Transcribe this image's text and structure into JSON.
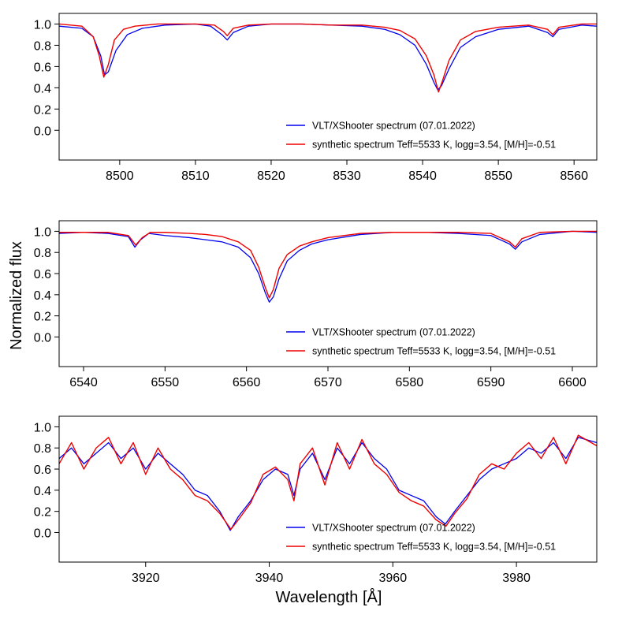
{
  "figure": {
    "ylabel": "Normalized flux",
    "xlabel": "Wavelength [Å]"
  },
  "colors": {
    "observed": "#0000ee",
    "synthetic": "#ee0000"
  },
  "chart_data": [
    {
      "type": "line",
      "title": "",
      "xlim": [
        8492,
        8563
      ],
      "ylim": [
        -0.28,
        1.1
      ],
      "xticks": [
        8500,
        8510,
        8520,
        8530,
        8540,
        8550,
        8560
      ],
      "yticks": [
        0.0,
        0.2,
        0.4,
        0.6,
        0.8,
        1.0
      ],
      "legend_placement": "lower-right",
      "series": [
        {
          "name": "VLT/XShooter spectrum (07.01.2022)",
          "role": "observed",
          "x": [
            8492,
            8495,
            8496.5,
            8497.5,
            8498,
            8498.5,
            8499.5,
            8501,
            8503,
            8506,
            8510,
            8512,
            8513.5,
            8514.2,
            8515,
            8517,
            8520,
            8524,
            8528,
            8532,
            8535,
            8537,
            8539,
            8540.5,
            8541.5,
            8542,
            8542.5,
            8543.5,
            8545,
            8547,
            8550,
            8554,
            8556.5,
            8557.2,
            8558,
            8561,
            8563
          ],
          "y": [
            0.98,
            0.96,
            0.88,
            0.7,
            0.52,
            0.55,
            0.75,
            0.9,
            0.96,
            0.99,
            1.0,
            0.98,
            0.9,
            0.85,
            0.92,
            0.98,
            1.0,
            1.0,
            0.99,
            0.98,
            0.95,
            0.9,
            0.8,
            0.62,
            0.45,
            0.38,
            0.42,
            0.58,
            0.78,
            0.88,
            0.95,
            0.98,
            0.92,
            0.88,
            0.95,
            0.99,
            0.98
          ]
        },
        {
          "name": "synthetic spectrum Teff=5533 K, logg=3.54, [M/H]=-0.51",
          "role": "synthetic",
          "x": [
            8492,
            8495,
            8496.5,
            8497.3,
            8497.9,
            8498.5,
            8499.3,
            8500.5,
            8502,
            8505,
            8510,
            8512.5,
            8513.7,
            8514.2,
            8515,
            8517,
            8520,
            8524,
            8528,
            8532,
            8535,
            8537,
            8539,
            8540.5,
            8541.5,
            8542.1,
            8542.6,
            8543.5,
            8545,
            8547,
            8550,
            8554,
            8556.5,
            8557.2,
            8558,
            8561,
            8563
          ],
          "y": [
            1.0,
            0.98,
            0.88,
            0.7,
            0.5,
            0.62,
            0.85,
            0.95,
            0.98,
            1.0,
            1.0,
            0.99,
            0.93,
            0.89,
            0.96,
            0.99,
            1.0,
            1.0,
            0.99,
            0.99,
            0.97,
            0.94,
            0.86,
            0.7,
            0.52,
            0.36,
            0.46,
            0.66,
            0.85,
            0.93,
            0.97,
            0.99,
            0.95,
            0.9,
            0.97,
            1.0,
            1.0
          ]
        }
      ]
    },
    {
      "type": "line",
      "title": "",
      "xlim": [
        6537,
        6603
      ],
      "ylim": [
        -0.28,
        1.1
      ],
      "xticks": [
        6540,
        6550,
        6560,
        6570,
        6580,
        6590,
        6600
      ],
      "yticks": [
        0.0,
        0.2,
        0.4,
        0.6,
        0.8,
        1.0
      ],
      "legend_placement": "lower-right",
      "series": [
        {
          "name": "VLT/XShooter spectrum (07.01.2022)",
          "role": "observed",
          "x": [
            6537,
            6540,
            6543,
            6545.5,
            6546.3,
            6547,
            6548,
            6550,
            6553,
            6555,
            6557,
            6559,
            6560.5,
            6561.5,
            6562.3,
            6562.8,
            6563.3,
            6564,
            6565,
            6566.5,
            6568,
            6570,
            6574,
            6578,
            6582,
            6586,
            6590,
            6592.3,
            6593,
            6593.8,
            6596,
            6600,
            6603
          ],
          "y": [
            0.98,
            0.99,
            0.98,
            0.95,
            0.85,
            0.92,
            0.98,
            0.96,
            0.94,
            0.92,
            0.9,
            0.85,
            0.75,
            0.6,
            0.42,
            0.33,
            0.38,
            0.55,
            0.72,
            0.82,
            0.88,
            0.92,
            0.97,
            0.99,
            0.99,
            0.98,
            0.96,
            0.88,
            0.83,
            0.9,
            0.97,
            1.0,
            0.99
          ]
        },
        {
          "name": "synthetic spectrum Teff=5533 K, logg=3.54, [M/H]=-0.51",
          "role": "synthetic",
          "x": [
            6537,
            6540,
            6543,
            6545.5,
            6546.4,
            6547.2,
            6548.2,
            6550,
            6553,
            6555,
            6557,
            6559,
            6560.5,
            6561.5,
            6562.3,
            6562.8,
            6563.3,
            6564,
            6565,
            6566.5,
            6568,
            6570,
            6574,
            6578,
            6582,
            6586,
            6590,
            6592.3,
            6593,
            6593.8,
            6596,
            6600,
            6603
          ],
          "y": [
            0.99,
            0.99,
            0.99,
            0.96,
            0.87,
            0.94,
            0.99,
            0.99,
            0.98,
            0.97,
            0.95,
            0.9,
            0.82,
            0.66,
            0.47,
            0.37,
            0.45,
            0.65,
            0.78,
            0.86,
            0.9,
            0.94,
            0.98,
            0.99,
            0.99,
            0.99,
            0.98,
            0.9,
            0.85,
            0.93,
            0.99,
            1.0,
            1.0
          ]
        }
      ]
    },
    {
      "type": "line",
      "title": "",
      "xlim": [
        3906,
        3993
      ],
      "ylim": [
        -0.28,
        1.1
      ],
      "xticks": [
        3920,
        3940,
        3960,
        3980
      ],
      "yticks": [
        0.0,
        0.2,
        0.4,
        0.6,
        0.8,
        1.0
      ],
      "legend_placement": "lower-right",
      "series": [
        {
          "name": "VLT/XShooter spectrum (07.01.2022)",
          "role": "observed",
          "x": [
            3906,
            3908,
            3910,
            3912,
            3914,
            3916,
            3918,
            3920,
            3922,
            3924,
            3926,
            3928,
            3930,
            3932,
            3933.7,
            3935,
            3937,
            3939,
            3941,
            3943,
            3944,
            3945,
            3947,
            3949,
            3951,
            3953,
            3955,
            3957,
            3959,
            3961,
            3963,
            3965,
            3967,
            3968.5,
            3970,
            3972,
            3974,
            3976,
            3978,
            3980,
            3982,
            3984,
            3986,
            3988,
            3990,
            3993
          ],
          "y": [
            0.7,
            0.8,
            0.65,
            0.75,
            0.85,
            0.7,
            0.8,
            0.6,
            0.75,
            0.65,
            0.55,
            0.4,
            0.35,
            0.2,
            0.02,
            0.15,
            0.3,
            0.5,
            0.6,
            0.55,
            0.35,
            0.6,
            0.75,
            0.5,
            0.8,
            0.65,
            0.85,
            0.7,
            0.6,
            0.4,
            0.35,
            0.3,
            0.15,
            0.08,
            0.2,
            0.35,
            0.5,
            0.6,
            0.65,
            0.7,
            0.8,
            0.75,
            0.85,
            0.7,
            0.9,
            0.85
          ]
        },
        {
          "name": "synthetic spectrum Teff=5533 K, logg=3.54, [M/H]=-0.51",
          "role": "synthetic",
          "x": [
            3906,
            3908,
            3910,
            3912,
            3914,
            3916,
            3918,
            3920,
            3922,
            3924,
            3926,
            3928,
            3930,
            3932,
            3933.8,
            3935,
            3937,
            3939,
            3941,
            3943,
            3944,
            3945,
            3947,
            3949,
            3951,
            3953,
            3955,
            3957,
            3959,
            3961,
            3963,
            3965,
            3967,
            3968.6,
            3970,
            3972,
            3974,
            3976,
            3978,
            3980,
            3982,
            3984,
            3986,
            3988,
            3990,
            3993
          ],
          "y": [
            0.65,
            0.85,
            0.6,
            0.8,
            0.9,
            0.65,
            0.85,
            0.55,
            0.8,
            0.6,
            0.5,
            0.35,
            0.3,
            0.18,
            0.03,
            0.12,
            0.28,
            0.55,
            0.62,
            0.5,
            0.3,
            0.65,
            0.8,
            0.45,
            0.85,
            0.6,
            0.88,
            0.65,
            0.55,
            0.38,
            0.3,
            0.25,
            0.12,
            0.06,
            0.18,
            0.32,
            0.55,
            0.65,
            0.6,
            0.75,
            0.85,
            0.7,
            0.9,
            0.65,
            0.92,
            0.82
          ]
        }
      ]
    }
  ]
}
